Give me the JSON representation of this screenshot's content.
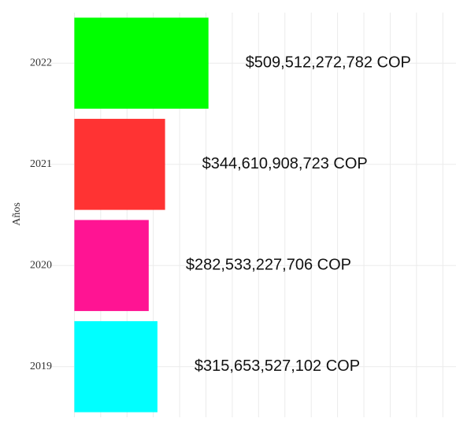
{
  "chart_data": {
    "type": "barh",
    "ylabel": "Años",
    "categories": [
      "2022",
      "2021",
      "2020",
      "2019"
    ],
    "series": [
      {
        "colors": [
          "#00ff00",
          "#ff3333",
          "#ff1493",
          "#00ffff"
        ],
        "values": [
          509512272782,
          344610908723,
          282533227706,
          315653527102
        ],
        "value_labels": [
          "$509,512,272,782 COP",
          "$344,610,908,723 COP",
          "$282,533,227,706 COP",
          "$315,653,527,102 COP"
        ]
      }
    ],
    "xlim": [
      -100000000000,
      1450000000000
    ],
    "xticks": [
      0,
      100000000000,
      200000000000,
      300000000000,
      400000000000,
      500000000000,
      600000000000,
      700000000000,
      800000000000,
      900000000000,
      1000000000000,
      1100000000000,
      1200000000000,
      1300000000000,
      1400000000000
    ],
    "grid": true
  }
}
